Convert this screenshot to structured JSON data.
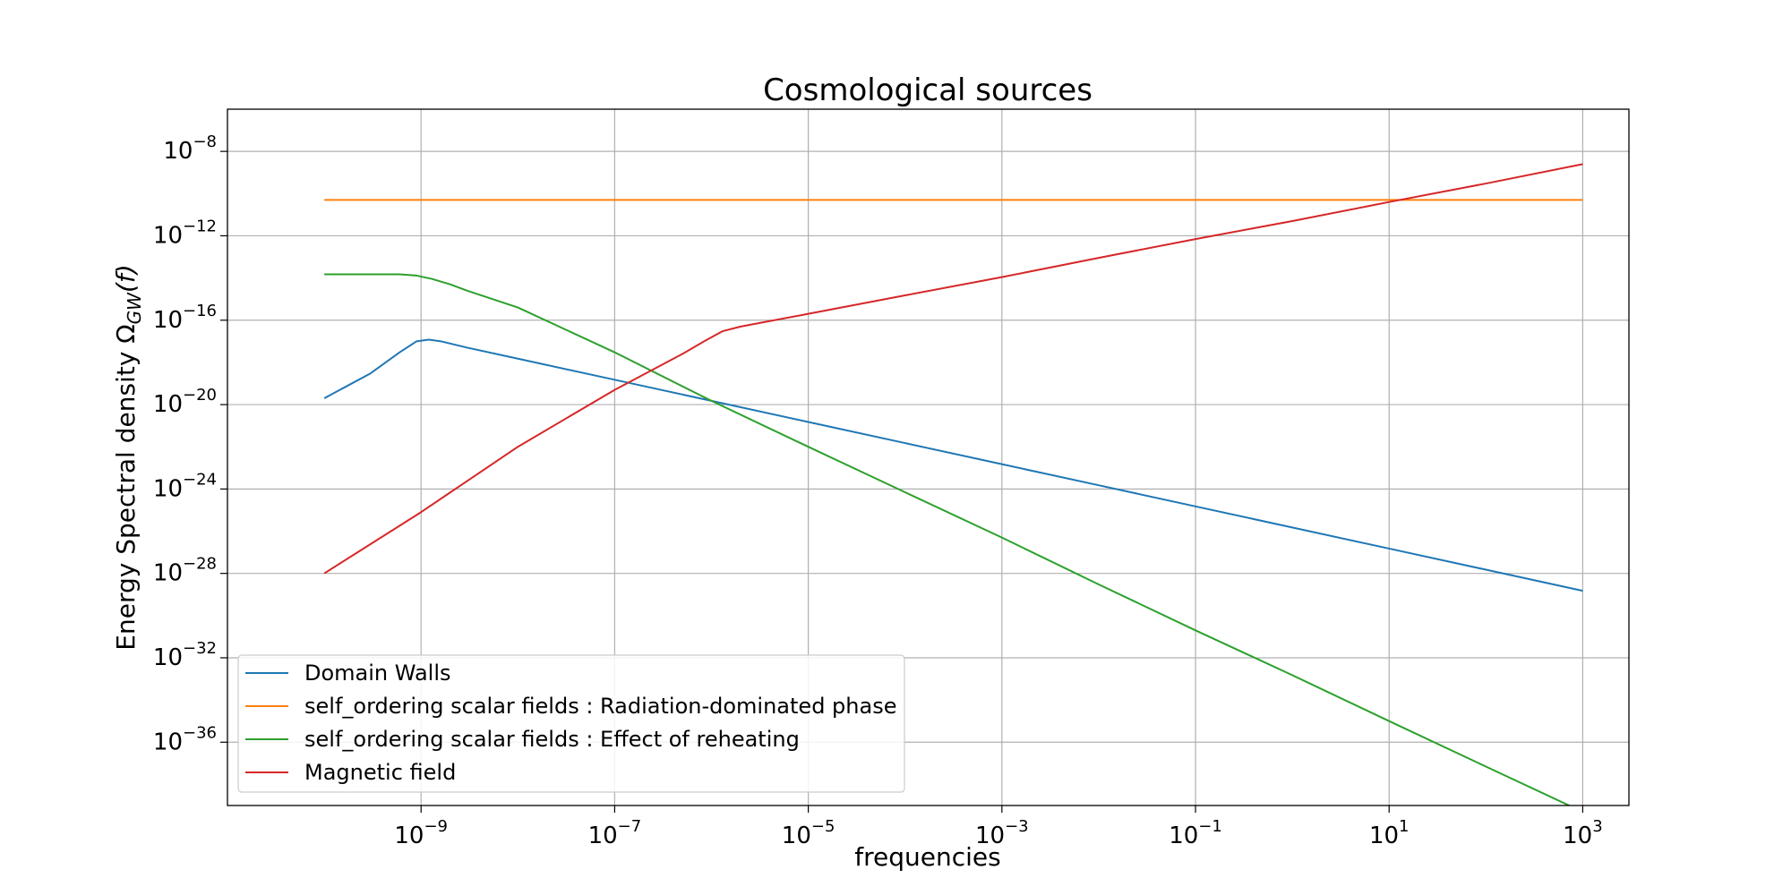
{
  "chart_data": {
    "type": "line",
    "title": "Cosmological sources",
    "xlabel": "frequencies",
    "ylabel": "Energy Spectral density Ω_GW(f)",
    "x_scale": "log",
    "y_scale": "log",
    "xlim": [
      1e-11,
      3000.0
    ],
    "ylim": [
      1e-39,
      1e-06
    ],
    "x_ticks": [
      {
        "value": 1e-09,
        "base": "10",
        "exp": "−9"
      },
      {
        "value": 1e-07,
        "base": "10",
        "exp": "−7"
      },
      {
        "value": 1e-05,
        "base": "10",
        "exp": "−5"
      },
      {
        "value": 0.001,
        "base": "10",
        "exp": "−3"
      },
      {
        "value": 0.1,
        "base": "10",
        "exp": "−1"
      },
      {
        "value": 10.0,
        "base": "10",
        "exp": "1"
      },
      {
        "value": 1000.0,
        "base": "10",
        "exp": "3"
      }
    ],
    "y_ticks": [
      {
        "value": 1e-08,
        "base": "10",
        "exp": "−8"
      },
      {
        "value": 1e-12,
        "base": "10",
        "exp": "−12"
      },
      {
        "value": 1e-16,
        "base": "10",
        "exp": "−16"
      },
      {
        "value": 1e-20,
        "base": "10",
        "exp": "−20"
      },
      {
        "value": 1e-24,
        "base": "10",
        "exp": "−24"
      },
      {
        "value": 1e-28,
        "base": "10",
        "exp": "−28"
      },
      {
        "value": 1e-32,
        "base": "10",
        "exp": "−32"
      },
      {
        "value": 1e-36,
        "base": "10",
        "exp": "−36"
      }
    ],
    "grid": true,
    "legend_position": "bottom-left",
    "series": [
      {
        "name": "Domain Walls",
        "color": "#1f77b4",
        "x": [
          1e-10,
          3e-10,
          6e-10,
          9e-10,
          1.2e-09,
          1.6e-09,
          3e-09,
          1e-08,
          1e-07,
          1e-06,
          1e-05,
          0.0001,
          0.001,
          0.01,
          0.1,
          1,
          10.0,
          100.0,
          1000.0
        ],
        "y": [
          2e-20,
          3e-19,
          3e-18,
          1e-17,
          1.2e-17,
          1e-17,
          5e-18,
          1.5e-18,
          1.5e-19,
          1.5e-20,
          1.5e-21,
          1.5e-22,
          1.5e-23,
          1.5e-24,
          1.5e-25,
          1.5e-26,
          1.5e-27,
          1.5e-28,
          1.5e-29
        ]
      },
      {
        "name": "self_ordering scalar fields : Radiation-dominated phase",
        "color": "#ff7f0e",
        "x": [
          1e-10,
          1000.0
        ],
        "y": [
          5e-11,
          5e-11
        ]
      },
      {
        "name": "self_ordering scalar fields : Effect of reheating",
        "color": "#2ca02c",
        "x": [
          1e-10,
          3e-10,
          6e-10,
          9e-10,
          1.3e-09,
          2e-09,
          3e-09,
          1e-08,
          1e-07,
          1e-06,
          1e-05,
          0.0001,
          0.001,
          0.01,
          0.1,
          1,
          10.0,
          100.0,
          1000.0
        ],
        "y": [
          1.5e-14,
          1.5e-14,
          1.5e-14,
          1.3e-14,
          9e-15,
          5e-15,
          2.5e-15,
          4e-16,
          3e-18,
          1.5e-20,
          1e-22,
          7e-25,
          5e-27,
          3e-29,
          2e-31,
          1.5e-33,
          1e-35,
          7e-38,
          5e-40
        ]
      },
      {
        "name": "Magnetic field",
        "color": "#d62728",
        "x": [
          1e-10,
          1e-09,
          1e-08,
          1e-07,
          5e-07,
          9e-07,
          1.3e-06,
          2e-06,
          1e-05,
          0.0001,
          0.001,
          0.01,
          0.1,
          1,
          10.0,
          100.0,
          1000.0
        ],
        "y": [
          1e-28,
          8e-26,
          1e-22,
          5e-20,
          2.5e-18,
          1.2e-17,
          3e-17,
          5e-17,
          2e-16,
          1.5e-15,
          1.1e-14,
          9e-14,
          7e-13,
          5e-12,
          4e-11,
          3e-10,
          2.5e-09
        ]
      }
    ]
  }
}
